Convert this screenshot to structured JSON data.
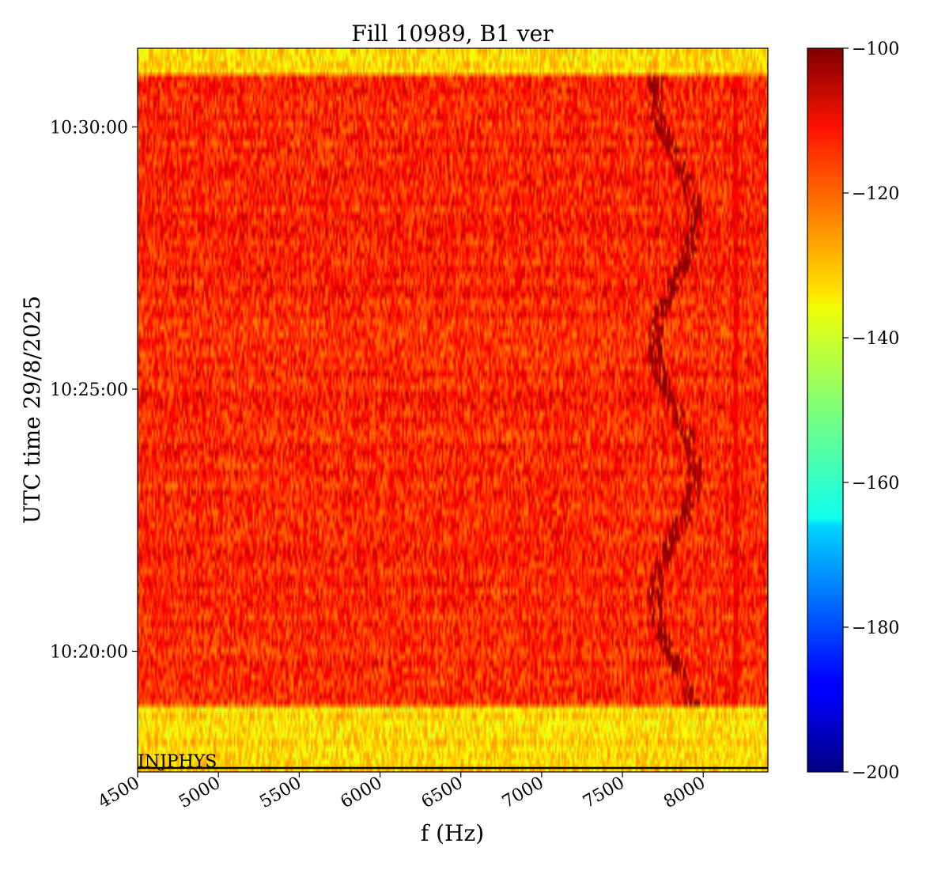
{
  "chart_data": {
    "type": "heatmap",
    "title": "Fill 10989, B1 ver",
    "xlabel": "f (Hz)",
    "ylabel": "UTC time 29/8/2025",
    "xlim": [
      4500,
      8400
    ],
    "ylim": [
      "10:17:42",
      "10:31:30"
    ],
    "x_ticks": [
      4500,
      5000,
      5500,
      6000,
      6500,
      7000,
      7500,
      8000
    ],
    "x_tick_labels": [
      "4500",
      "5000",
      "5500",
      "6000",
      "6500",
      "7000",
      "7500",
      "8000"
    ],
    "y_ticks": [
      "10:20:00",
      "10:25:00",
      "10:30:00"
    ],
    "y_tick_labels": [
      "10:20:00",
      "10:25:00",
      "10:30:00"
    ],
    "colorbar": {
      "colormap": "jet",
      "range": [
        -200,
        -100
      ],
      "ticks": [
        -100,
        -120,
        -140,
        -160,
        -180,
        -200
      ],
      "tick_labels": [
        "−100",
        "−120",
        "−140",
        "−160",
        "−180",
        "−200"
      ]
    },
    "regions": [
      {
        "t_start": "10:17:42",
        "t_end": "10:18:57",
        "mean_db": -134
      },
      {
        "t_start": "10:18:57",
        "t_end": "10:30:58",
        "mean_db": -116
      },
      {
        "t_start": "10:30:58",
        "t_end": "10:31:30",
        "mean_db": -134
      }
    ],
    "line_features": [
      {
        "f_start_hz": 7700,
        "f_end_hz": 7950,
        "intensity_db": -102
      },
      {
        "f_hz": 8200,
        "intensity_db": -112
      }
    ],
    "annotations": [
      {
        "text": "INJPHYS",
        "t": "10:17:45"
      }
    ]
  }
}
